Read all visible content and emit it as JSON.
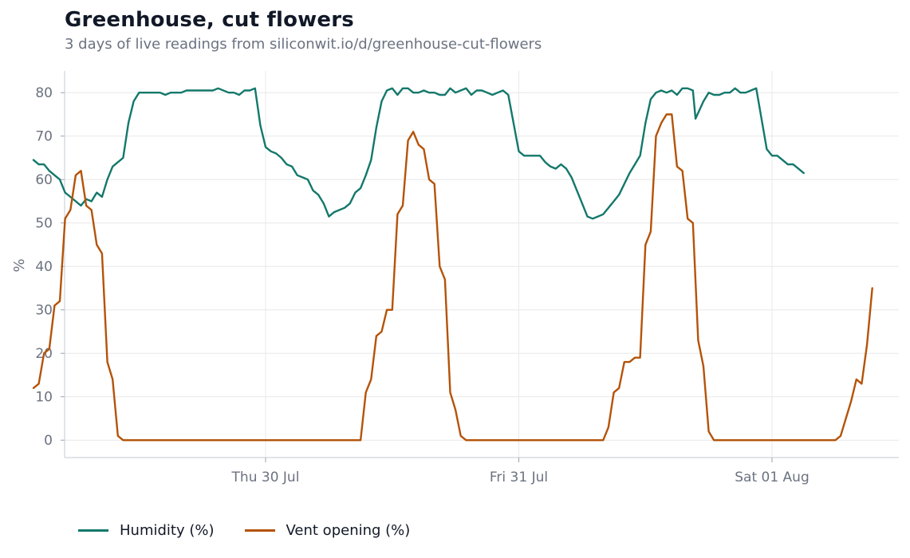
{
  "header": {
    "title": "Greenhouse, cut flowers",
    "subtitle": "3 days of live readings from siliconwit.io/d/greenhouse-cut-flowers"
  },
  "chart_data": {
    "type": "line",
    "ylabel": "%",
    "xlabel": "",
    "ylim": [
      -4,
      85
    ],
    "yticks": [
      0,
      10,
      20,
      30,
      40,
      50,
      60,
      70,
      80
    ],
    "x_ticks": [
      {
        "label": "Thu 30 Jul",
        "date": "2026-07-30T00:00"
      },
      {
        "label": "Fri 31 Jul",
        "date": "2026-07-31T00:00"
      },
      {
        "label": "Sat 01 Aug",
        "date": "2026-08-01T00:00"
      }
    ],
    "grid": true,
    "legend_position": "bottom-left",
    "series": [
      {
        "name": "Humidity (%)",
        "color": "#13786b",
        "points": [
          [
            "2026-07-29T02:00",
            64.5
          ],
          [
            "2026-07-29T02:30",
            63.5
          ],
          [
            "2026-07-29T03:00",
            63.5
          ],
          [
            "2026-07-29T03:30",
            62
          ],
          [
            "2026-07-29T04:00",
            61
          ],
          [
            "2026-07-29T04:30",
            60
          ],
          [
            "2026-07-29T05:00",
            57
          ],
          [
            "2026-07-29T05:30",
            56
          ],
          [
            "2026-07-29T06:00",
            55
          ],
          [
            "2026-07-29T06:30",
            54
          ],
          [
            "2026-07-29T07:00",
            55.5
          ],
          [
            "2026-07-29T07:30",
            55
          ],
          [
            "2026-07-29T08:00",
            57
          ],
          [
            "2026-07-29T08:30",
            56
          ],
          [
            "2026-07-29T09:00",
            60
          ],
          [
            "2026-07-29T09:30",
            63
          ],
          [
            "2026-07-29T10:00",
            64
          ],
          [
            "2026-07-29T10:30",
            65
          ],
          [
            "2026-07-29T11:00",
            73
          ],
          [
            "2026-07-29T11:30",
            78
          ],
          [
            "2026-07-29T12:00",
            80
          ],
          [
            "2026-07-29T13:00",
            80
          ],
          [
            "2026-07-29T14:00",
            80
          ],
          [
            "2026-07-29T14:30",
            79.5
          ],
          [
            "2026-07-29T15:00",
            80
          ],
          [
            "2026-07-29T16:00",
            80
          ],
          [
            "2026-07-29T16:30",
            80.5
          ],
          [
            "2026-07-29T18:00",
            80.5
          ],
          [
            "2026-07-29T19:00",
            80.5
          ],
          [
            "2026-07-29T19:30",
            81
          ],
          [
            "2026-07-29T20:30",
            80
          ],
          [
            "2026-07-29T21:00",
            80
          ],
          [
            "2026-07-29T21:30",
            79.5
          ],
          [
            "2026-07-29T22:00",
            80.5
          ],
          [
            "2026-07-29T22:30",
            80.5
          ],
          [
            "2026-07-29T23:00",
            81
          ],
          [
            "2026-07-29T23:30",
            72.5
          ],
          [
            "2026-07-30T00:00",
            67.5
          ],
          [
            "2026-07-30T00:30",
            66.5
          ],
          [
            "2026-07-30T01:00",
            66
          ],
          [
            "2026-07-30T01:30",
            65
          ],
          [
            "2026-07-30T02:00",
            63.5
          ],
          [
            "2026-07-30T02:30",
            63
          ],
          [
            "2026-07-30T03:00",
            61
          ],
          [
            "2026-07-30T04:00",
            60
          ],
          [
            "2026-07-30T04:30",
            57.5
          ],
          [
            "2026-07-30T05:00",
            56.5
          ],
          [
            "2026-07-30T05:30",
            54.5
          ],
          [
            "2026-07-30T06:00",
            51.5
          ],
          [
            "2026-07-30T06:30",
            52.5
          ],
          [
            "2026-07-30T07:00",
            53
          ],
          [
            "2026-07-30T07:30",
            53.5
          ],
          [
            "2026-07-30T08:00",
            54.5
          ],
          [
            "2026-07-30T08:30",
            57
          ],
          [
            "2026-07-30T09:00",
            58
          ],
          [
            "2026-07-30T09:30",
            61
          ],
          [
            "2026-07-30T10:00",
            64.5
          ],
          [
            "2026-07-30T10:30",
            72
          ],
          [
            "2026-07-30T11:00",
            78
          ],
          [
            "2026-07-30T11:30",
            80.5
          ],
          [
            "2026-07-30T12:00",
            81
          ],
          [
            "2026-07-30T12:30",
            79.5
          ],
          [
            "2026-07-30T13:00",
            81
          ],
          [
            "2026-07-30T13:30",
            81
          ],
          [
            "2026-07-30T14:00",
            80
          ],
          [
            "2026-07-30T14:30",
            80
          ],
          [
            "2026-07-30T15:00",
            80.5
          ],
          [
            "2026-07-30T15:30",
            80
          ],
          [
            "2026-07-30T16:00",
            80
          ],
          [
            "2026-07-30T16:30",
            79.5
          ],
          [
            "2026-07-30T17:00",
            79.5
          ],
          [
            "2026-07-30T17:30",
            81
          ],
          [
            "2026-07-30T18:00",
            80
          ],
          [
            "2026-07-30T18:30",
            80.5
          ],
          [
            "2026-07-30T19:00",
            81
          ],
          [
            "2026-07-30T19:30",
            79.5
          ],
          [
            "2026-07-30T20:00",
            80.5
          ],
          [
            "2026-07-30T20:30",
            80.5
          ],
          [
            "2026-07-30T21:00",
            80
          ],
          [
            "2026-07-30T21:30",
            79.5
          ],
          [
            "2026-07-30T22:00",
            80
          ],
          [
            "2026-07-30T22:30",
            80.5
          ],
          [
            "2026-07-30T23:00",
            79.5
          ],
          [
            "2026-07-30T23:30",
            73
          ],
          [
            "2026-07-31T00:00",
            66.5
          ],
          [
            "2026-07-31T00:30",
            65.5
          ],
          [
            "2026-07-31T02:00",
            65.5
          ],
          [
            "2026-07-31T02:30",
            64
          ],
          [
            "2026-07-31T03:00",
            63
          ],
          [
            "2026-07-31T03:30",
            62.5
          ],
          [
            "2026-07-31T04:00",
            63.5
          ],
          [
            "2026-07-31T04:30",
            62.5
          ],
          [
            "2026-07-31T05:00",
            60.5
          ],
          [
            "2026-07-31T05:30",
            57.5
          ],
          [
            "2026-07-31T06:00",
            54.5
          ],
          [
            "2026-07-31T06:30",
            51.5
          ],
          [
            "2026-07-31T07:00",
            51
          ],
          [
            "2026-07-31T07:30",
            51.5
          ],
          [
            "2026-07-31T08:00",
            52
          ],
          [
            "2026-07-31T08:30",
            53.5
          ],
          [
            "2026-07-31T09:00",
            55
          ],
          [
            "2026-07-31T09:30",
            56.5
          ],
          [
            "2026-07-31T10:00",
            59
          ],
          [
            "2026-07-31T10:30",
            61.5
          ],
          [
            "2026-07-31T11:00",
            63.5
          ],
          [
            "2026-07-31T11:30",
            65.5
          ],
          [
            "2026-07-31T12:00",
            73
          ],
          [
            "2026-07-31T12:30",
            78.5
          ],
          [
            "2026-07-31T13:00",
            80
          ],
          [
            "2026-07-31T13:30",
            80.5
          ],
          [
            "2026-07-31T14:00",
            80
          ],
          [
            "2026-07-31T14:30",
            80.5
          ],
          [
            "2026-07-31T15:00",
            79.5
          ],
          [
            "2026-07-31T15:30",
            81
          ],
          [
            "2026-07-31T16:00",
            81
          ],
          [
            "2026-07-31T16:30",
            80.5
          ],
          [
            "2026-07-31T16:45",
            74
          ],
          [
            "2026-07-31T17:30",
            78
          ],
          [
            "2026-07-31T18:00",
            80
          ],
          [
            "2026-07-31T18:30",
            79.5
          ],
          [
            "2026-07-31T19:00",
            79.5
          ],
          [
            "2026-07-31T19:30",
            80
          ],
          [
            "2026-07-31T20:00",
            80
          ],
          [
            "2026-07-31T20:30",
            81
          ],
          [
            "2026-07-31T21:00",
            80
          ],
          [
            "2026-07-31T21:30",
            80
          ],
          [
            "2026-07-31T22:00",
            80.5
          ],
          [
            "2026-07-31T22:30",
            81
          ],
          [
            "2026-07-31T23:00",
            74
          ],
          [
            "2026-07-31T23:30",
            67
          ],
          [
            "2026-08-01T00:00",
            65.5
          ],
          [
            "2026-08-01T00:30",
            65.5
          ],
          [
            "2026-08-01T01:00",
            64.5
          ],
          [
            "2026-08-01T01:30",
            63.5
          ],
          [
            "2026-08-01T02:00",
            63.5
          ],
          [
            "2026-08-01T02:30",
            62.5
          ],
          [
            "2026-08-01T03:00",
            61.5
          ]
        ]
      },
      {
        "name": "Vent opening (%)",
        "color": "#b45309",
        "points": [
          [
            "2026-07-29T02:00",
            12
          ],
          [
            "2026-07-29T02:30",
            13
          ],
          [
            "2026-07-29T03:00",
            20
          ],
          [
            "2026-07-29T03:30",
            21
          ],
          [
            "2026-07-29T04:00",
            31
          ],
          [
            "2026-07-29T04:30",
            32
          ],
          [
            "2026-07-29T05:00",
            51
          ],
          [
            "2026-07-29T05:30",
            53
          ],
          [
            "2026-07-29T06:00",
            61
          ],
          [
            "2026-07-29T06:30",
            62
          ],
          [
            "2026-07-29T07:00",
            54
          ],
          [
            "2026-07-29T07:30",
            53
          ],
          [
            "2026-07-29T08:00",
            45
          ],
          [
            "2026-07-29T08:30",
            43
          ],
          [
            "2026-07-29T09:00",
            18
          ],
          [
            "2026-07-29T09:30",
            14
          ],
          [
            "2026-07-29T10:00",
            1
          ],
          [
            "2026-07-29T10:30",
            0
          ],
          [
            "2026-07-30T09:00",
            0
          ],
          [
            "2026-07-30T09:30",
            11
          ],
          [
            "2026-07-30T10:00",
            14
          ],
          [
            "2026-07-30T10:30",
            24
          ],
          [
            "2026-07-30T11:00",
            25
          ],
          [
            "2026-07-30T11:30",
            30
          ],
          [
            "2026-07-30T12:00",
            30
          ],
          [
            "2026-07-30T12:30",
            52
          ],
          [
            "2026-07-30T13:00",
            54
          ],
          [
            "2026-07-30T13:30",
            69
          ],
          [
            "2026-07-30T14:00",
            71
          ],
          [
            "2026-07-30T14:30",
            68
          ],
          [
            "2026-07-30T15:00",
            67
          ],
          [
            "2026-07-30T15:30",
            60
          ],
          [
            "2026-07-30T16:00",
            59
          ],
          [
            "2026-07-30T16:30",
            40
          ],
          [
            "2026-07-30T17:00",
            37
          ],
          [
            "2026-07-30T17:30",
            11
          ],
          [
            "2026-07-30T18:00",
            7
          ],
          [
            "2026-07-30T18:30",
            1
          ],
          [
            "2026-07-30T19:00",
            0
          ],
          [
            "2026-07-31T08:00",
            0
          ],
          [
            "2026-07-31T08:30",
            3
          ],
          [
            "2026-07-31T09:00",
            11
          ],
          [
            "2026-07-31T09:30",
            12
          ],
          [
            "2026-07-31T10:00",
            18
          ],
          [
            "2026-07-31T10:30",
            18
          ],
          [
            "2026-07-31T11:00",
            19
          ],
          [
            "2026-07-31T11:30",
            19
          ],
          [
            "2026-07-31T12:00",
            45
          ],
          [
            "2026-07-31T12:30",
            48
          ],
          [
            "2026-07-31T13:00",
            70
          ],
          [
            "2026-07-31T13:30",
            73
          ],
          [
            "2026-07-31T14:00",
            75
          ],
          [
            "2026-07-31T14:30",
            75
          ],
          [
            "2026-07-31T15:00",
            63
          ],
          [
            "2026-07-31T15:30",
            62
          ],
          [
            "2026-07-31T16:00",
            51
          ],
          [
            "2026-07-31T16:30",
            50
          ],
          [
            "2026-07-31T17:00",
            23
          ],
          [
            "2026-07-31T17:30",
            17
          ],
          [
            "2026-07-31T18:00",
            2
          ],
          [
            "2026-07-31T18:30",
            0
          ],
          [
            "2026-08-01T06:00",
            0
          ],
          [
            "2026-08-01T06:30",
            1
          ],
          [
            "2026-08-01T07:00",
            5
          ],
          [
            "2026-08-01T07:30",
            9
          ],
          [
            "2026-08-01T08:00",
            14
          ],
          [
            "2026-08-01T08:30",
            13
          ],
          [
            "2026-08-01T09:00",
            22
          ],
          [
            "2026-08-01T09:30",
            35
          ]
        ]
      }
    ]
  }
}
